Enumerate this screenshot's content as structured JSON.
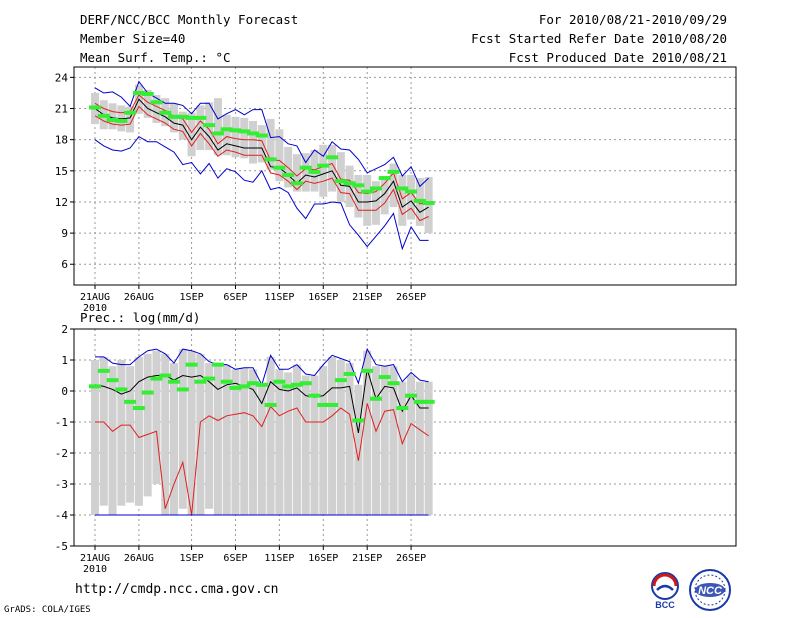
{
  "header": {
    "title": "DERF/NCC/BCC Monthly Forecast",
    "member_size": "Member Size=40",
    "variable": "Mean Surf. Temp.: °C",
    "period": "For 2010/08/21-2010/09/29",
    "refer_date": "Fcst Started Refer Date 2010/08/20",
    "produced_date": "Fcst Produced Date 2010/08/21"
  },
  "footer": {
    "url": "http://cmdp.ncc.cma.gov.cn",
    "credit": "GrADS: COLA/IGES",
    "logo_left": "BCC",
    "logo_right": "NCC"
  },
  "colors": {
    "box": "#d0d0d0",
    "median": "#000000",
    "inner": "#e02020",
    "outer": "#0000cc",
    "green": "#33ee33",
    "grid": "#999999"
  },
  "chart_data": [
    {
      "type": "line",
      "title": "Mean Surf. Temp.: °C",
      "x_tick_labels": [
        "21AUG",
        "26AUG",
        "1SEP",
        "6SEP",
        "11SEP",
        "16SEP",
        "21SEP",
        "26SEP"
      ],
      "x_tick_days": [
        0,
        5,
        11,
        16,
        21,
        26,
        31,
        36
      ],
      "year_label": "2010",
      "ylim": [
        4,
        25
      ],
      "yticks": [
        6,
        9,
        12,
        15,
        18,
        21,
        24
      ],
      "series": [
        {
          "name": "median",
          "values": [
            21,
            20.4,
            20.1,
            20,
            20.1,
            21.9,
            21,
            20.6,
            20.2,
            19.6,
            19.4,
            18,
            19.2,
            18.3,
            17,
            17.6,
            17.4,
            17.2,
            17.2,
            17.2,
            15.4,
            15.3,
            14.6,
            13.8,
            14.6,
            14.4,
            14.7,
            15,
            13.6,
            13.5,
            12,
            12,
            12.1,
            12.8,
            14,
            11.5,
            12.1,
            11,
            11.5
          ]
        },
        {
          "name": "q75",
          "values": [
            21.5,
            21,
            20.7,
            20.6,
            20.7,
            22.3,
            21.6,
            21.2,
            20.8,
            20.2,
            20,
            18.7,
            19.8,
            19,
            17.6,
            18.3,
            18.1,
            18,
            18,
            17.9,
            16,
            16,
            15.3,
            14.5,
            15.2,
            15.1,
            15.4,
            15.7,
            14.2,
            14.1,
            12.9,
            12.8,
            13,
            13.8,
            14.8,
            12.3,
            12.9,
            11.8,
            12
          ]
        },
        {
          "name": "q25",
          "values": [
            20.3,
            19.8,
            19.5,
            19.4,
            19.5,
            21.2,
            20.4,
            20,
            19.6,
            19,
            18.8,
            17.4,
            18.6,
            17.6,
            16.4,
            17,
            16.8,
            16.5,
            16.5,
            16.5,
            14.8,
            14.6,
            14,
            13.2,
            14,
            13.8,
            14,
            14.3,
            12.9,
            12.8,
            11.2,
            11.2,
            11.2,
            11.9,
            13.2,
            10.8,
            11.4,
            10.2,
            10.6
          ]
        },
        {
          "name": "max",
          "values": [
            23,
            22.5,
            22.6,
            22.1,
            21.2,
            23.6,
            22.5,
            22,
            21.5,
            21.5,
            21.3,
            20.5,
            21.5,
            21.5,
            20,
            20.5,
            20.9,
            20.4,
            20.9,
            20.9,
            18.2,
            18.3,
            17.6,
            17.4,
            15.8,
            17,
            16.4,
            17.8,
            17.1,
            17,
            16.1,
            14.8,
            15.2,
            15.6,
            16.3,
            14.5,
            15.4,
            13.5,
            14.3
          ]
        },
        {
          "name": "min",
          "values": [
            18,
            17.4,
            17,
            16.9,
            17.2,
            18.3,
            17.8,
            17.8,
            17.3,
            16.8,
            15.6,
            15.8,
            14.7,
            15.7,
            14.3,
            15.2,
            14.9,
            14.1,
            13.9,
            15,
            13.2,
            13.4,
            12.9,
            11.4,
            10.4,
            11.8,
            11.8,
            12,
            11.9,
            9.8,
            8.8,
            7.7,
            8.7,
            9.7,
            10.9,
            7.5,
            9.6,
            8.3,
            8.3
          ]
        },
        {
          "name": "green",
          "values": [
            21.1,
            20.3,
            19.9,
            19.8,
            20.6,
            22.5,
            22.4,
            21.6,
            20.6,
            20.2,
            20.2,
            20.1,
            20.1,
            19.4,
            18.6,
            19,
            18.9,
            18.8,
            18.6,
            18.4,
            16.1,
            15.3,
            14.6,
            13.8,
            15.3,
            14.9,
            15.5,
            16.3,
            14,
            13.8,
            13.6,
            13,
            13.3,
            14.3,
            14.9,
            13.3,
            13,
            12.1,
            11.9
          ]
        }
      ],
      "box_ranges": [
        [
          19.5,
          22.5
        ],
        [
          19,
          21.8
        ],
        [
          19,
          21.5
        ],
        [
          18.8,
          21.3
        ],
        [
          18.7,
          21.2
        ],
        [
          20.5,
          23.3
        ],
        [
          20.1,
          22.8
        ],
        [
          19.6,
          22.3
        ],
        [
          19.3,
          22
        ],
        [
          18.7,
          21.5
        ],
        [
          18,
          20.7
        ],
        [
          16.4,
          20.6
        ],
        [
          17,
          21.3
        ],
        [
          17,
          21.6
        ],
        [
          16.5,
          22
        ],
        [
          16.5,
          20.4
        ],
        [
          16.3,
          20.2
        ],
        [
          16.2,
          20.1
        ],
        [
          15.7,
          19.8
        ],
        [
          15.8,
          19.4
        ],
        [
          15.1,
          20
        ],
        [
          14,
          19
        ],
        [
          13.4,
          17.3
        ],
        [
          13,
          16.6
        ],
        [
          13,
          16.7
        ],
        [
          13,
          17
        ],
        [
          12.5,
          17.5
        ],
        [
          13,
          17.5
        ],
        [
          12,
          16.8
        ],
        [
          11.5,
          15.5
        ],
        [
          10.5,
          14.6
        ],
        [
          9.7,
          14.6
        ],
        [
          9.8,
          14
        ],
        [
          10.8,
          14.5
        ],
        [
          11.5,
          15.7
        ],
        [
          9.7,
          14.6
        ],
        [
          10.3,
          14.6
        ],
        [
          9.7,
          14.3
        ],
        [
          9,
          14.4
        ]
      ]
    },
    {
      "type": "line",
      "title": "Prec.: log(mm/d)",
      "x_tick_labels": [
        "21AUG",
        "26AUG",
        "1SEP",
        "6SEP",
        "11SEP",
        "16SEP",
        "21SEP",
        "26SEP"
      ],
      "x_tick_days": [
        0,
        5,
        11,
        16,
        21,
        26,
        31,
        36
      ],
      "year_label": "2010",
      "ylim": [
        -5,
        2
      ],
      "yticks": [
        -5,
        -4,
        -3,
        -2,
        -1,
        0,
        1,
        2
      ],
      "series": [
        {
          "name": "median",
          "values": [
            0.2,
            0.15,
            0.05,
            -0.1,
            0,
            0.3,
            0.45,
            0.5,
            0.5,
            0.35,
            0.5,
            0.45,
            0.5,
            0.3,
            0.05,
            0.2,
            0.25,
            0.15,
            0.05,
            -0.4,
            0.3,
            0.05,
            0,
            0.1,
            -0.15,
            -0.2,
            -0.15,
            0.1,
            0.1,
            0.15,
            -1.35,
            0.7,
            -0.25,
            0.15,
            0.1,
            -0.65,
            -0.15,
            -0.55,
            -0.55
          ]
        },
        {
          "name": "q10",
          "values": [
            -1,
            -1,
            -1.3,
            -1.1,
            -1.1,
            -1.5,
            -1.4,
            -1.3,
            -3.8,
            -3,
            -2.3,
            -4,
            -1,
            -0.8,
            -0.95,
            -0.8,
            -0.75,
            -0.7,
            -0.8,
            -1.15,
            -0.5,
            -0.8,
            -0.65,
            -0.55,
            -1,
            -1,
            -1,
            -0.8,
            -0.55,
            -0.75,
            -2.25,
            -0.4,
            -1.3,
            -0.65,
            -0.6,
            -1.7,
            -1.05,
            -1.25,
            -1.45
          ]
        },
        {
          "name": "max",
          "values": [
            1.1,
            1.1,
            0.9,
            0.85,
            0.85,
            1.1,
            1.3,
            1.35,
            1.2,
            0.9,
            1.35,
            1.3,
            1.2,
            0.95,
            0.85,
            0.85,
            0.7,
            0.75,
            0.75,
            0.2,
            1.15,
            0.7,
            0.7,
            0.85,
            0.55,
            0.5,
            0.85,
            1.15,
            1.05,
            0.95,
            0.25,
            1.35,
            0.85,
            0.8,
            0.85,
            0.3,
            0.6,
            0.35,
            0.3
          ]
        },
        {
          "name": "min",
          "values": [
            -4,
            -4,
            -4,
            -4,
            -4,
            -4,
            -4,
            -4,
            -4,
            -4,
            -4,
            -4,
            -4,
            -4,
            -4,
            -4,
            -4,
            -4,
            -4,
            -4,
            -4,
            -4,
            -4,
            -4,
            -4,
            -4,
            -4,
            -4,
            -4,
            -4,
            -4,
            -4,
            -4,
            -4,
            -4,
            -4,
            -4,
            -4,
            -4
          ]
        },
        {
          "name": "green",
          "values": [
            0.15,
            0.65,
            0.35,
            0.05,
            -0.35,
            -0.55,
            -0.05,
            0.4,
            0.5,
            0.3,
            0.05,
            0.85,
            0.3,
            0.4,
            0.85,
            0.3,
            0.1,
            0.15,
            0.25,
            0.2,
            -0.45,
            0.3,
            0.15,
            0.2,
            0.25,
            -0.15,
            -0.45,
            -0.45,
            0.35,
            0.55,
            -0.95,
            0.65,
            -0.25,
            0.45,
            0.25,
            -0.55,
            -0.15,
            -0.35,
            -0.35
          ]
        }
      ],
      "box_ranges": [
        [
          -4,
          1
        ],
        [
          -3.7,
          1.1
        ],
        [
          -4,
          0.8
        ],
        [
          -3.7,
          1
        ],
        [
          -3.6,
          0.8
        ],
        [
          -3.7,
          1.1
        ],
        [
          -3.4,
          1.2
        ],
        [
          -3,
          1.3
        ],
        [
          -4,
          1.2
        ],
        [
          -4,
          0.9
        ],
        [
          -3.8,
          1.35
        ],
        [
          -4,
          1.3
        ],
        [
          -4,
          1.2
        ],
        [
          -3.8,
          0.9
        ],
        [
          -4,
          0.8
        ],
        [
          -4,
          0.85
        ],
        [
          -4,
          0.7
        ],
        [
          -4,
          0.75
        ],
        [
          -4,
          0.7
        ],
        [
          -4,
          0.2
        ],
        [
          -4,
          1.1
        ],
        [
          -4,
          0.7
        ],
        [
          -4,
          0.6
        ],
        [
          -4,
          0.85
        ],
        [
          -4,
          0.5
        ],
        [
          -4,
          0.5
        ],
        [
          -4,
          0.8
        ],
        [
          -4,
          1.1
        ],
        [
          -4,
          1
        ],
        [
          -4,
          0.9
        ],
        [
          -4,
          0.2
        ],
        [
          -4,
          1.3
        ],
        [
          -4,
          0.8
        ],
        [
          -4,
          0.8
        ],
        [
          -4,
          0.8
        ],
        [
          -4,
          0.3
        ],
        [
          -4,
          0.5
        ],
        [
          -4,
          0.3
        ],
        [
          -4,
          0.3
        ]
      ]
    }
  ]
}
